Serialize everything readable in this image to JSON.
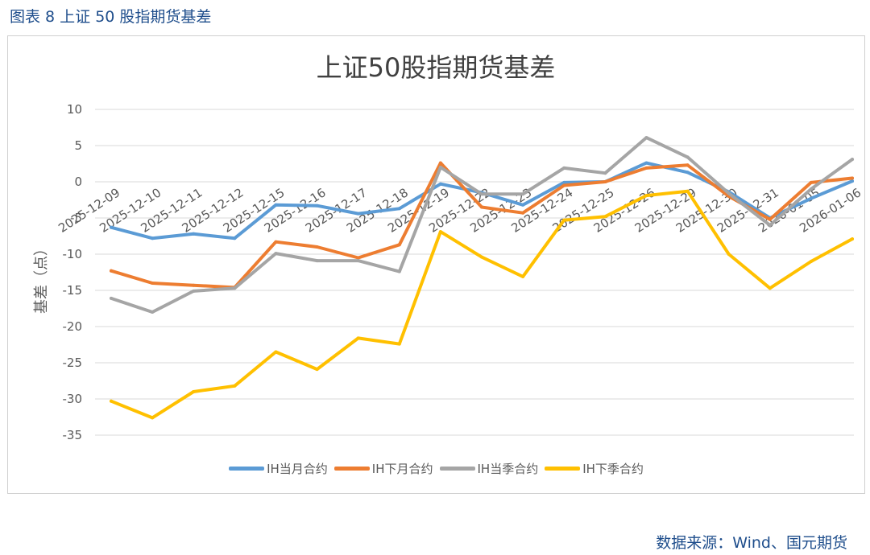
{
  "figure_caption": "图表 8  上证 50 股指期货基差",
  "source_note": "数据来源：Wind、国元期货",
  "colors": {
    "IH当月合约": "#5b9bd5",
    "IH下月合约": "#ed7d31",
    "IH当季合约": "#a5a5a5",
    "IH下季合约": "#ffc000",
    "caption": "#1f4e8c",
    "grid": "#d9d9d9",
    "axis_text": "#595959"
  },
  "chart_data": {
    "type": "line",
    "title": "上证50股指期货基差",
    "xlabel": "",
    "ylabel": "基差（点）",
    "ylim": [
      -35,
      10
    ],
    "yticks": [
      10,
      5,
      0,
      -5,
      -10,
      -15,
      -20,
      -25,
      -30,
      -35
    ],
    "grid": true,
    "legend_position": "bottom",
    "categories": [
      "2025-12-09",
      "2025-12-10",
      "2025-12-11",
      "2025-12-12",
      "2025-12-15",
      "2025-12-16",
      "2025-12-17",
      "2025-12-18",
      "2025-12-19",
      "2025-12-22",
      "2025-12-23",
      "2025-12-24",
      "2025-12-25",
      "2025-12-26",
      "2025-12-29",
      "2025-12-30",
      "2025-12-31",
      "2026-01-05",
      "2026-01-06"
    ],
    "series": [
      {
        "name": "IH当月合约",
        "values": [
          -6.3,
          -7.8,
          -7.2,
          -7.8,
          -3.2,
          -3.3,
          -4.4,
          -3.7,
          -0.3,
          -1.5,
          -3.2,
          -0.1,
          0.0,
          2.6,
          1.3,
          -1.4,
          -5.0,
          -2.3,
          0.1
        ]
      },
      {
        "name": "IH下月合约",
        "values": [
          -12.3,
          -14.0,
          -14.3,
          -14.6,
          -8.3,
          -9.0,
          -10.5,
          -8.7,
          2.6,
          -3.5,
          -4.3,
          -0.5,
          0.0,
          1.9,
          2.3,
          -2.0,
          -5.2,
          -0.1,
          0.5
        ]
      },
      {
        "name": "IH当季合约",
        "values": [
          -16.1,
          -18.0,
          -15.1,
          -14.7,
          -9.9,
          -10.9,
          -10.9,
          -12.4,
          2.0,
          -1.7,
          -1.7,
          1.9,
          1.2,
          6.1,
          3.4,
          -1.6,
          -6.0,
          -1.0,
          3.1
        ]
      },
      {
        "name": "IH下季合约",
        "values": [
          -30.3,
          -32.6,
          -29.0,
          -28.2,
          -23.5,
          -25.9,
          -21.6,
          -22.4,
          -6.9,
          -10.4,
          -13.1,
          -5.3,
          -4.8,
          -1.9,
          -1.3,
          -10.0,
          -14.7,
          -11.0,
          -7.9
        ]
      }
    ]
  }
}
